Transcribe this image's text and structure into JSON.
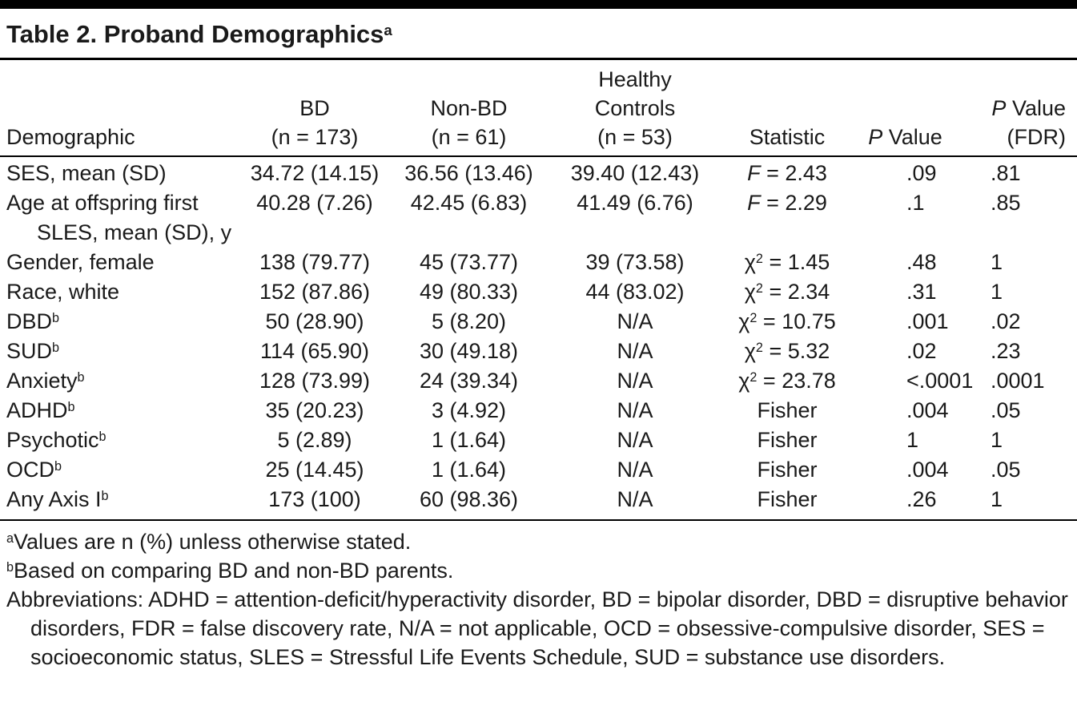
{
  "colors": {
    "background": "#ffffff",
    "text": "#1a1a1a",
    "rule": "#000000"
  },
  "title": {
    "text": "Table 2. Proband Demographics",
    "sup": "a"
  },
  "header": {
    "demographic": "Demographic",
    "bd": {
      "line1": "BD",
      "line2": "(n = 173)"
    },
    "non_bd": {
      "line1": "Non-BD",
      "line2": "(n = 61)"
    },
    "healthy_controls": {
      "line1": "Healthy",
      "line2": "Controls",
      "line3": "(n = 53)"
    },
    "statistic": "Statistic",
    "p_value": {
      "italic": "P",
      "rest": " Value"
    },
    "p_value_fdr": {
      "italic": "P",
      "rest": " Value",
      "line2": "(FDR)"
    }
  },
  "rows": [
    {
      "demographic": {
        "text": "SES, mean (SD)",
        "sup": "",
        "line2": ""
      },
      "bd": "34.72 (14.15)",
      "non_bd": "36.56 (13.46)",
      "hc": "39.40 (12.43)",
      "statistic": {
        "symbol": "F",
        "italic": true,
        "sup": "",
        "rest": " = 2.43"
      },
      "p": ".09",
      "p_fdr": ".81"
    },
    {
      "demographic": {
        "text": "Age at offspring first",
        "sup": "",
        "line2": "SLES, mean (SD), y"
      },
      "bd": "40.28 (7.26)",
      "non_bd": "42.45 (6.83)",
      "hc": "41.49 (6.76)",
      "statistic": {
        "symbol": "F",
        "italic": true,
        "sup": "",
        "rest": " = 2.29"
      },
      "p": ".1",
      "p_fdr": ".85"
    },
    {
      "demographic": {
        "text": "Gender, female",
        "sup": "",
        "line2": ""
      },
      "bd": "138 (79.77)",
      "non_bd": "45 (73.77)",
      "hc": "39 (73.58)",
      "statistic": {
        "symbol": "χ",
        "italic": false,
        "sup": "2",
        "rest": " = 1.45"
      },
      "p": ".48",
      "p_fdr": "1"
    },
    {
      "demographic": {
        "text": "Race, white",
        "sup": "",
        "line2": ""
      },
      "bd": "152 (87.86)",
      "non_bd": "49 (80.33)",
      "hc": "44 (83.02)",
      "statistic": {
        "symbol": "χ",
        "italic": false,
        "sup": "2",
        "rest": " = 2.34"
      },
      "p": ".31",
      "p_fdr": "1"
    },
    {
      "demographic": {
        "text": "DBD",
        "sup": "b",
        "line2": ""
      },
      "bd": "50 (28.90)",
      "non_bd": "5 (8.20)",
      "hc": "N/A",
      "statistic": {
        "symbol": "χ",
        "italic": false,
        "sup": "2",
        "rest": " = 10.75"
      },
      "p": ".001",
      "p_fdr": ".02"
    },
    {
      "demographic": {
        "text": "SUD",
        "sup": "b",
        "line2": ""
      },
      "bd": "114 (65.90)",
      "non_bd": "30 (49.18)",
      "hc": "N/A",
      "statistic": {
        "symbol": "χ",
        "italic": false,
        "sup": "2",
        "rest": " = 5.32"
      },
      "p": ".02",
      "p_fdr": ".23"
    },
    {
      "demographic": {
        "text": "Anxiety",
        "sup": "b",
        "line2": ""
      },
      "bd": "128 (73.99)",
      "non_bd": "24 (39.34)",
      "hc": "N/A",
      "statistic": {
        "symbol": "χ",
        "italic": false,
        "sup": "2",
        "rest": " = 23.78"
      },
      "p": "<.0001",
      "p_fdr": ".0001"
    },
    {
      "demographic": {
        "text": "ADHD",
        "sup": "b",
        "line2": ""
      },
      "bd": "35 (20.23)",
      "non_bd": "3 (4.92)",
      "hc": "N/A",
      "statistic": {
        "symbol": "",
        "italic": false,
        "sup": "",
        "rest": "Fisher"
      },
      "p": ".004",
      "p_fdr": ".05"
    },
    {
      "demographic": {
        "text": "Psychotic",
        "sup": "b",
        "line2": ""
      },
      "bd": "5 (2.89)",
      "non_bd": "1 (1.64)",
      "hc": "N/A",
      "statistic": {
        "symbol": "",
        "italic": false,
        "sup": "",
        "rest": "Fisher"
      },
      "p": "1",
      "p_fdr": "1"
    },
    {
      "demographic": {
        "text": "OCD",
        "sup": "b",
        "line2": ""
      },
      "bd": "25 (14.45)",
      "non_bd": "1 (1.64)",
      "hc": "N/A",
      "statistic": {
        "symbol": "",
        "italic": false,
        "sup": "",
        "rest": "Fisher"
      },
      "p": ".004",
      "p_fdr": ".05"
    },
    {
      "demographic": {
        "text": "Any Axis I",
        "sup": "b",
        "line2": ""
      },
      "bd": "173 (100)",
      "non_bd": "60 (98.36)",
      "hc": "N/A",
      "statistic": {
        "symbol": "",
        "italic": false,
        "sup": "",
        "rest": "Fisher"
      },
      "p": ".26",
      "p_fdr": "1"
    }
  ],
  "footnotes": [
    {
      "sup": "a",
      "text": "Values are n (%) unless otherwise stated."
    },
    {
      "sup": "b",
      "text": "Based on comparing BD and non-BD parents."
    },
    {
      "sup": "",
      "text": "Abbreviations: ADHD = attention-deficit/hyperactivity disorder, BD = bipolar disorder, DBD = disruptive behavior disorders, FDR = false discovery rate, N/A = not applicable, OCD = obsessive-compulsive disorder, SES = socioeconomic status, SLES = Stressful Life Events Schedule, SUD = substance use disorders."
    }
  ]
}
